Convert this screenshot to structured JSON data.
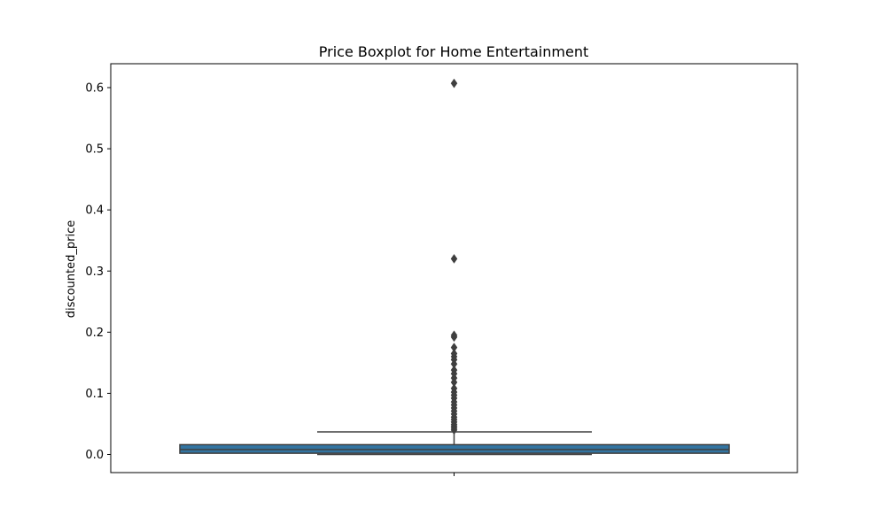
{
  "chart_data": {
    "type": "box",
    "title": "Price Boxplot for Home Entertainment",
    "xlabel": "",
    "ylabel": "discounted_price",
    "ylim": [
      -0.03,
      0.64
    ],
    "yticks": [
      "0.0",
      "0.1",
      "0.2",
      "0.3",
      "0.4",
      "0.5",
      "0.6"
    ],
    "ytick_values": [
      0.0,
      0.1,
      0.2,
      0.3,
      0.4,
      0.5,
      0.6
    ],
    "grid": false,
    "box": {
      "whisker_low": 0.0,
      "q1": 0.002,
      "median": 0.008,
      "q3": 0.016,
      "whisker_high": 0.037,
      "fill_color": "#3274a1",
      "edge_color": "#3f3f3f"
    },
    "outliers": [
      0.607,
      0.32,
      0.195,
      0.192,
      0.175,
      0.165,
      0.16,
      0.155,
      0.148,
      0.138,
      0.132,
      0.125,
      0.118,
      0.108,
      0.102,
      0.097,
      0.092,
      0.086,
      0.081,
      0.076,
      0.071,
      0.066,
      0.061,
      0.057,
      0.053,
      0.049,
      0.046,
      0.043,
      0.04
    ]
  }
}
